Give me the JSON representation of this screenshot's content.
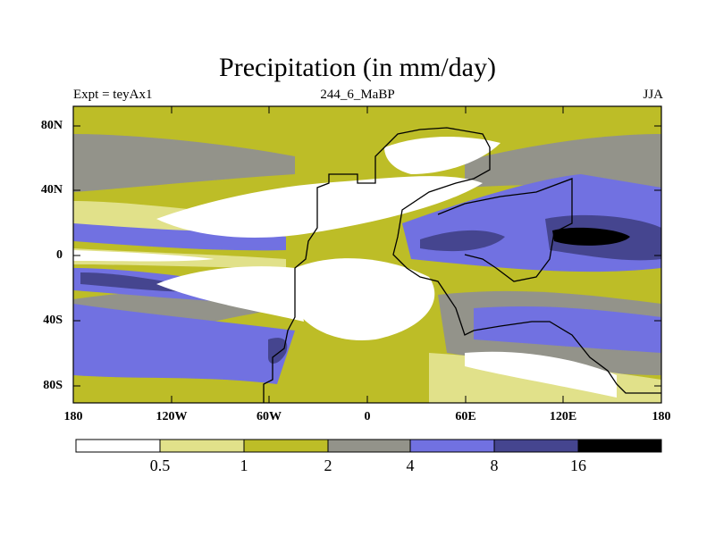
{
  "title": "Precipitation (in mm/day)",
  "subtitle_left": "Expt = teyAx1",
  "subtitle_center": "244_6_MaBP",
  "subtitle_right": "JJA",
  "y_ticks": [
    "80N",
    "40N",
    "0",
    "40S",
    "80S"
  ],
  "x_ticks": [
    "180",
    "120W",
    "60W",
    "0",
    "60E",
    "120E",
    "180"
  ],
  "colorbar": {
    "colors": [
      "#ffffff",
      "#e1e18a",
      "#bdbd27",
      "#93938a",
      "#7171e1",
      "#45458f",
      "#000000"
    ],
    "labels": [
      "0.5",
      "1",
      "2",
      "4",
      "8",
      "16"
    ]
  }
}
